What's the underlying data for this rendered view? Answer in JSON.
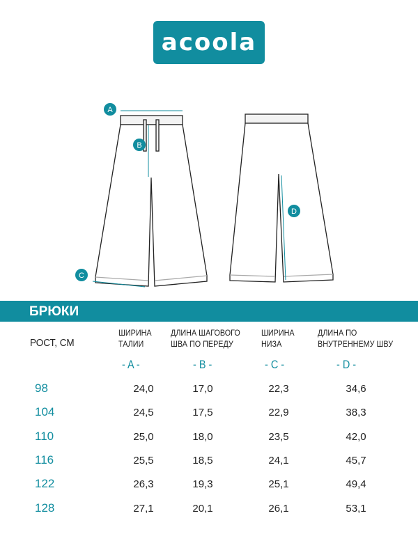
{
  "brand": {
    "logo_text": "acoola",
    "color": "#118d9f"
  },
  "diagram": {
    "markers": [
      "A",
      "B",
      "C",
      "D"
    ]
  },
  "section_title": "БРЮКИ",
  "table": {
    "row_header": "РОСТ, СМ",
    "columns": [
      {
        "line1": "ШИРИНА",
        "line2": "ТАЛИИ",
        "letter": "- A -"
      },
      {
        "line1": "ДЛИНА ШАГОВОГО",
        "line2": "ШВА ПО ПЕРЕДУ",
        "letter": "- B -"
      },
      {
        "line1": "ШИРИНА",
        "line2": "НИЗА",
        "letter": "- C -"
      },
      {
        "line1": "ДЛИНА ПО",
        "line2": "ВНУТРЕННЕМУ ШВУ",
        "letter": "- D -"
      }
    ],
    "rows": [
      {
        "height": "98",
        "values": [
          "24,0",
          "17,0",
          "22,3",
          "34,6"
        ]
      },
      {
        "height": "104",
        "values": [
          "24,5",
          "17,5",
          "22,9",
          "38,3"
        ]
      },
      {
        "height": "110",
        "values": [
          "25,0",
          "18,0",
          "23,5",
          "42,0"
        ]
      },
      {
        "height": "116",
        "values": [
          "25,5",
          "18,5",
          "24,1",
          "45,7"
        ]
      },
      {
        "height": "122",
        "values": [
          "26,3",
          "19,3",
          "25,1",
          "49,4"
        ]
      },
      {
        "height": "128",
        "values": [
          "27,1",
          "20,1",
          "26,1",
          "53,1"
        ]
      }
    ]
  }
}
